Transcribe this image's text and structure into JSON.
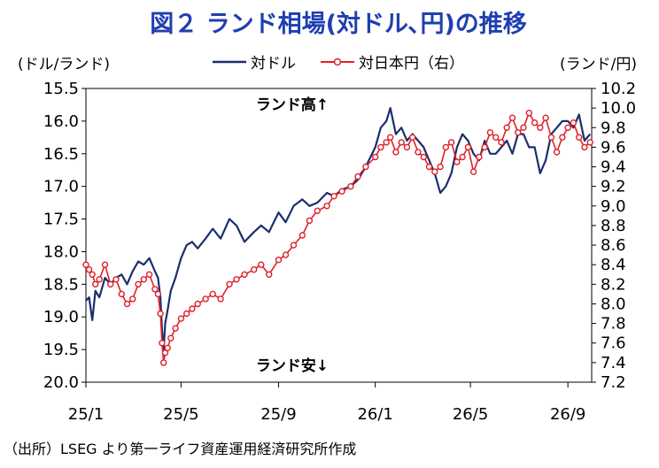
{
  "chart_data": {
    "type": "line",
    "title": "図２ ランド相場(対ドル､円)の推移",
    "left_unit": "(ドル/ランド)",
    "right_unit": "(ランド/円)",
    "source": "（出所）LSEG より第一ライフ資産運用経済研究所作成",
    "annotations": {
      "top": "ランド高↑",
      "bottom": "ランド安↓"
    },
    "y_left": {
      "min": 15.5,
      "max": 20.0,
      "inverted": true,
      "ticks": [
        "15.5",
        "16.0",
        "16.5",
        "17.0",
        "17.5",
        "18.0",
        "18.5",
        "19.0",
        "19.5",
        "20.0"
      ]
    },
    "y_right": {
      "min": 7.2,
      "max": 10.2,
      "ticks": [
        "10.2",
        "10.0",
        "9.8",
        "9.6",
        "9.4",
        "9.2",
        "9.0",
        "8.8",
        "8.6",
        "8.4",
        "8.2",
        "8.0",
        "7.8",
        "7.6",
        "7.4",
        "7.2"
      ]
    },
    "x_ticks": [
      "25/1",
      "25/5",
      "25/9",
      "26/1",
      "26/5",
      "26/9"
    ],
    "x_range": [
      "2025-01",
      "2026-10"
    ],
    "grid": false,
    "series": [
      {
        "name": "対ドル",
        "axis": "left",
        "color": "#1a2f6e",
        "x": [
          "2025-01-01",
          "2025-01-05",
          "2025-01-09",
          "2025-01-13",
          "2025-01-18",
          "2025-01-25",
          "2025-02-01",
          "2025-02-08",
          "2025-02-15",
          "2025-02-22",
          "2025-03-01",
          "2025-03-08",
          "2025-03-15",
          "2025-03-22",
          "2025-03-29",
          "2025-04-02",
          "2025-04-05",
          "2025-04-07",
          "2025-04-09",
          "2025-04-11",
          "2025-04-14",
          "2025-04-18",
          "2025-04-24",
          "2025-05-01",
          "2025-05-08",
          "2025-05-15",
          "2025-05-22",
          "2025-06-01",
          "2025-06-10",
          "2025-06-20",
          "2025-07-01",
          "2025-07-10",
          "2025-07-20",
          "2025-08-01",
          "2025-08-10",
          "2025-08-20",
          "2025-09-01",
          "2025-09-10",
          "2025-09-20",
          "2025-10-01",
          "2025-10-10",
          "2025-10-20",
          "2025-11-01",
          "2025-11-10",
          "2025-11-20",
          "2025-12-01",
          "2025-12-10",
          "2025-12-20",
          "2026-01-01",
          "2026-01-08",
          "2026-01-15",
          "2026-01-20",
          "2026-01-27",
          "2026-02-03",
          "2026-02-10",
          "2026-02-17",
          "2026-02-24",
          "2026-03-03",
          "2026-03-10",
          "2026-03-17",
          "2026-03-24",
          "2026-03-31",
          "2026-04-07",
          "2026-04-14",
          "2026-04-21",
          "2026-04-28",
          "2026-05-05",
          "2026-05-12",
          "2026-05-19",
          "2026-05-26",
          "2026-06-02",
          "2026-06-09",
          "2026-06-16",
          "2026-06-23",
          "2026-06-30",
          "2026-07-07",
          "2026-07-14",
          "2026-07-21",
          "2026-07-28",
          "2026-08-04",
          "2026-08-11",
          "2026-08-18",
          "2026-08-25",
          "2026-09-01",
          "2026-09-08",
          "2026-09-15",
          "2026-09-22",
          "2026-09-29"
        ],
        "values": [
          18.75,
          18.7,
          19.05,
          18.6,
          18.7,
          18.4,
          18.5,
          18.4,
          18.35,
          18.5,
          18.3,
          18.15,
          18.2,
          18.1,
          18.3,
          18.4,
          18.7,
          19.2,
          19.5,
          19.1,
          18.9,
          18.6,
          18.4,
          18.1,
          17.9,
          17.85,
          17.95,
          17.8,
          17.65,
          17.8,
          17.5,
          17.6,
          17.85,
          17.7,
          17.6,
          17.7,
          17.4,
          17.55,
          17.3,
          17.2,
          17.3,
          17.25,
          17.1,
          17.15,
          17.05,
          17.0,
          16.9,
          16.7,
          16.4,
          16.1,
          16.0,
          15.8,
          16.2,
          16.1,
          16.3,
          16.2,
          16.3,
          16.4,
          16.6,
          16.8,
          17.1,
          17.0,
          16.8,
          16.4,
          16.2,
          16.3,
          16.5,
          16.6,
          16.3,
          16.5,
          16.5,
          16.4,
          16.3,
          16.5,
          16.2,
          16.2,
          16.4,
          16.4,
          16.8,
          16.6,
          16.2,
          16.1,
          16.0,
          16.0,
          16.1,
          15.9,
          16.3,
          16.2
        ]
      },
      {
        "name": "対日本円（右）",
        "axis": "right",
        "color": "#e0202a",
        "x": [
          "2025-01-01",
          "2025-01-05",
          "2025-01-09",
          "2025-01-13",
          "2025-01-18",
          "2025-01-25",
          "2025-02-01",
          "2025-02-08",
          "2025-02-15",
          "2025-02-22",
          "2025-03-01",
          "2025-03-08",
          "2025-03-15",
          "2025-03-22",
          "2025-03-29",
          "2025-04-02",
          "2025-04-05",
          "2025-04-07",
          "2025-04-09",
          "2025-04-11",
          "2025-04-14",
          "2025-04-18",
          "2025-04-24",
          "2025-05-01",
          "2025-05-08",
          "2025-05-15",
          "2025-05-22",
          "2025-06-01",
          "2025-06-10",
          "2025-06-20",
          "2025-07-01",
          "2025-07-10",
          "2025-07-20",
          "2025-08-01",
          "2025-08-10",
          "2025-08-20",
          "2025-09-01",
          "2025-09-10",
          "2025-09-20",
          "2025-10-01",
          "2025-10-10",
          "2025-10-20",
          "2025-11-01",
          "2025-11-10",
          "2025-11-20",
          "2025-12-01",
          "2025-12-10",
          "2025-12-20",
          "2026-01-01",
          "2026-01-08",
          "2026-01-15",
          "2026-01-20",
          "2026-01-27",
          "2026-02-03",
          "2026-02-10",
          "2026-02-17",
          "2026-02-24",
          "2026-03-03",
          "2026-03-10",
          "2026-03-17",
          "2026-03-24",
          "2026-03-31",
          "2026-04-07",
          "2026-04-14",
          "2026-04-21",
          "2026-04-28",
          "2026-05-05",
          "2026-05-12",
          "2026-05-19",
          "2026-05-26",
          "2026-06-02",
          "2026-06-09",
          "2026-06-16",
          "2026-06-23",
          "2026-06-30",
          "2026-07-07",
          "2026-07-14",
          "2026-07-21",
          "2026-07-28",
          "2026-08-04",
          "2026-08-11",
          "2026-08-18",
          "2026-08-25",
          "2026-09-01",
          "2026-09-08",
          "2026-09-15",
          "2026-09-22",
          "2026-09-29"
        ],
        "values": [
          8.4,
          8.35,
          8.3,
          8.2,
          8.25,
          8.4,
          8.2,
          8.25,
          8.1,
          8.0,
          8.05,
          8.2,
          8.25,
          8.3,
          8.15,
          8.1,
          7.9,
          7.6,
          7.4,
          7.5,
          7.55,
          7.65,
          7.75,
          7.85,
          7.9,
          7.95,
          8.0,
          8.05,
          8.1,
          8.05,
          8.2,
          8.25,
          8.3,
          8.35,
          8.4,
          8.3,
          8.45,
          8.5,
          8.6,
          8.7,
          8.85,
          8.95,
          9.0,
          9.1,
          9.15,
          9.2,
          9.3,
          9.4,
          9.5,
          9.6,
          9.65,
          9.7,
          9.55,
          9.65,
          9.6,
          9.7,
          9.55,
          9.5,
          9.4,
          9.35,
          9.4,
          9.6,
          9.65,
          9.45,
          9.5,
          9.6,
          9.35,
          9.5,
          9.6,
          9.75,
          9.7,
          9.65,
          9.8,
          9.9,
          9.75,
          9.8,
          9.95,
          9.85,
          9.8,
          9.9,
          9.7,
          9.55,
          9.7,
          9.8,
          9.85,
          9.7,
          9.6,
          9.65
        ]
      }
    ]
  }
}
